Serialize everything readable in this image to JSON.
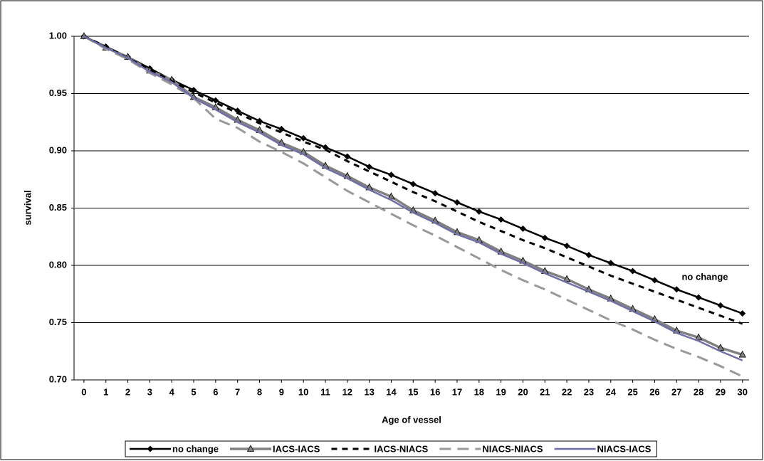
{
  "chart_data": {
    "type": "line",
    "x": [
      0,
      1,
      2,
      3,
      4,
      5,
      6,
      7,
      8,
      9,
      10,
      11,
      12,
      13,
      14,
      15,
      16,
      17,
      18,
      19,
      20,
      21,
      22,
      23,
      24,
      25,
      26,
      27,
      28,
      29,
      30
    ],
    "series": [
      {
        "name": "no change",
        "color": "#000000",
        "style": "solid",
        "marker": "diamond",
        "values": [
          1.0,
          0.991,
          0.982,
          0.972,
          0.962,
          0.953,
          0.944,
          0.935,
          0.926,
          0.919,
          0.911,
          0.903,
          0.895,
          0.886,
          0.879,
          0.871,
          0.863,
          0.855,
          0.847,
          0.84,
          0.832,
          0.824,
          0.817,
          0.809,
          0.802,
          0.795,
          0.787,
          0.779,
          0.772,
          0.765,
          0.758
        ]
      },
      {
        "name": "IACS-IACS",
        "color": "#808080",
        "style": "solid",
        "marker": "triangle",
        "values": [
          1.0,
          0.99,
          0.982,
          0.97,
          0.962,
          0.947,
          0.938,
          0.927,
          0.918,
          0.907,
          0.899,
          0.887,
          0.878,
          0.868,
          0.86,
          0.848,
          0.839,
          0.829,
          0.822,
          0.812,
          0.804,
          0.795,
          0.788,
          0.779,
          0.771,
          0.762,
          0.753,
          0.743,
          0.737,
          0.728,
          0.722
        ]
      },
      {
        "name": "IACS-NIACS",
        "color": "#000000",
        "style": "dashed",
        "marker": "none",
        "values": [
          1.0,
          0.991,
          0.981,
          0.971,
          0.961,
          0.951,
          0.942,
          0.933,
          0.924,
          0.916,
          0.908,
          0.901,
          0.891,
          0.882,
          0.873,
          0.864,
          0.856,
          0.847,
          0.838,
          0.83,
          0.822,
          0.815,
          0.807,
          0.799,
          0.791,
          0.784,
          0.777,
          0.77,
          0.763,
          0.756,
          0.749
        ]
      },
      {
        "name": "NIACS-NIACS",
        "color": "#999999",
        "style": "dashed",
        "marker": "none",
        "values": [
          1.0,
          0.989,
          0.98,
          0.968,
          0.958,
          0.946,
          0.928,
          0.92,
          0.908,
          0.899,
          0.889,
          0.877,
          0.865,
          0.855,
          0.845,
          0.835,
          0.826,
          0.816,
          0.806,
          0.796,
          0.787,
          0.779,
          0.77,
          0.761,
          0.752,
          0.744,
          0.735,
          0.727,
          0.72,
          0.712,
          0.703
        ]
      },
      {
        "name": "NIACS-IACS",
        "color": "#6f6fa8",
        "style": "solid",
        "marker": "none",
        "values": [
          1.0,
          0.99,
          0.981,
          0.969,
          0.96,
          0.946,
          0.936,
          0.925,
          0.916,
          0.905,
          0.897,
          0.885,
          0.876,
          0.866,
          0.857,
          0.846,
          0.837,
          0.827,
          0.82,
          0.81,
          0.802,
          0.793,
          0.785,
          0.777,
          0.769,
          0.76,
          0.751,
          0.741,
          0.734,
          0.725,
          0.717
        ]
      }
    ],
    "xlabel": "Age of vessel",
    "ylabel": "survival",
    "annotation": "no change",
    "xlim": [
      -0.45,
      30.3
    ],
    "ylim": [
      0.7,
      1.0
    ],
    "xticks": [
      0,
      1,
      2,
      3,
      4,
      5,
      6,
      7,
      8,
      9,
      10,
      11,
      12,
      13,
      14,
      15,
      16,
      17,
      18,
      19,
      20,
      21,
      22,
      23,
      24,
      25,
      26,
      27,
      28,
      29,
      30
    ],
    "yticks": [
      {
        "value": 0.7,
        "label": "0.70"
      },
      0.75,
      {
        "value": 0.8,
        "label": "0.80"
      },
      0.85,
      {
        "value": 0.9,
        "label": "0.90"
      },
      0.95,
      {
        "value": 1.0,
        "label": "1.00"
      }
    ],
    "grid": true,
    "legend": "bottom"
  }
}
